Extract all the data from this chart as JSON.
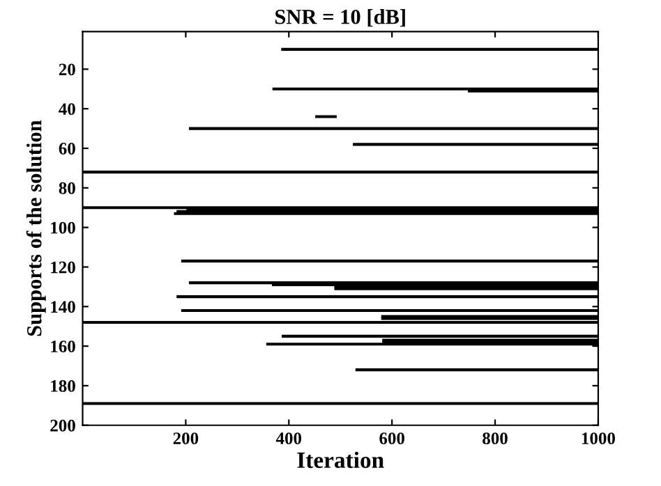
{
  "chart_data": {
    "type": "line",
    "title": "SNR = 10 [dB]",
    "xlabel": "Iteration",
    "ylabel": "Supports of the solution",
    "xlim": [
      0,
      1000
    ],
    "ylim": [
      200,
      1
    ],
    "xticks": [
      200,
      400,
      600,
      800,
      1000
    ],
    "yticks": [
      20,
      40,
      60,
      80,
      100,
      120,
      140,
      160,
      180,
      200
    ],
    "grid": false,
    "legend": false,
    "marker": "none",
    "line_style": "solid",
    "series": [
      {
        "color": "#000000",
        "x": [
          388,
          1000
        ],
        "values": [
          10,
          10
        ]
      },
      {
        "color": "#000000",
        "x": [
          371,
          1000
        ],
        "values": [
          30,
          30
        ]
      },
      {
        "color": "#000000",
        "x": [
          750,
          1000
        ],
        "values": [
          31,
          31
        ]
      },
      {
        "color": "#000000",
        "x": [
          454,
          490
        ],
        "values": [
          44,
          44
        ]
      },
      {
        "color": "#000000",
        "x": [
          209,
          1000
        ],
        "values": [
          50,
          50
        ]
      },
      {
        "color": "#000000",
        "x": [
          527,
          1000
        ],
        "values": [
          58,
          58
        ]
      },
      {
        "color": "#000000",
        "x": [
          0,
          1000
        ],
        "values": [
          72,
          72
        ]
      },
      {
        "color": "#000000",
        "x": [
          0,
          1000
        ],
        "values": [
          90,
          90
        ]
      },
      {
        "color": "#000000",
        "x": [
          204,
          1000
        ],
        "values": [
          91,
          91
        ]
      },
      {
        "color": "#000000",
        "x": [
          185,
          1000
        ],
        "values": [
          92,
          92
        ]
      },
      {
        "color": "#000000",
        "x": [
          180,
          1000
        ],
        "values": [
          93,
          93
        ]
      },
      {
        "color": "#000000",
        "x": [
          194,
          1000
        ],
        "values": [
          117,
          117
        ]
      },
      {
        "color": "#000000",
        "x": [
          209,
          1000
        ],
        "values": [
          128,
          128
        ]
      },
      {
        "color": "#000000",
        "x": [
          370,
          1000
        ],
        "values": [
          129,
          129
        ]
      },
      {
        "color": "#000000",
        "x": [
          491,
          1000
        ],
        "values": [
          130,
          130
        ]
      },
      {
        "color": "#000000",
        "x": [
          491,
          1000
        ],
        "values": [
          131,
          131
        ]
      },
      {
        "color": "#000000",
        "x": [
          185,
          1000
        ],
        "values": [
          135,
          135
        ]
      },
      {
        "color": "#000000",
        "x": [
          194,
          1000
        ],
        "values": [
          142,
          142
        ]
      },
      {
        "color": "#000000",
        "x": [
          582,
          1000
        ],
        "values": [
          145,
          145
        ]
      },
      {
        "color": "#000000",
        "x": [
          582,
          1000
        ],
        "values": [
          146,
          146
        ]
      },
      {
        "color": "#000000",
        "x": [
          0,
          1000
        ],
        "values": [
          148,
          148
        ]
      },
      {
        "color": "#000000",
        "x": [
          389,
          1000
        ],
        "values": [
          155,
          155
        ]
      },
      {
        "color": "#000000",
        "x": [
          584,
          1000
        ],
        "values": [
          157,
          157
        ]
      },
      {
        "color": "#000000",
        "x": [
          584,
          1000
        ],
        "values": [
          158,
          158
        ]
      },
      {
        "color": "#000000",
        "x": [
          359,
          1000
        ],
        "values": [
          159,
          159
        ]
      },
      {
        "color": "#000000",
        "x": [
          532,
          1000
        ],
        "values": [
          172,
          172
        ]
      },
      {
        "color": "#000000",
        "x": [
          0,
          1000
        ],
        "values": [
          189,
          189
        ]
      }
    ]
  }
}
